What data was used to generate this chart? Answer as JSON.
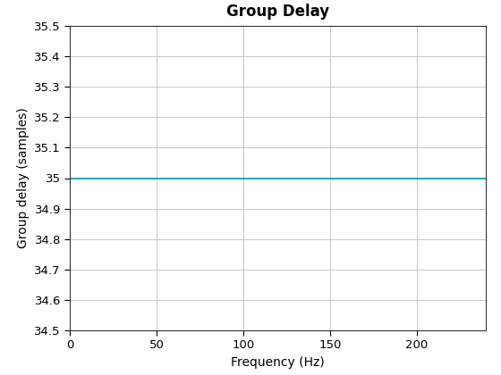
{
  "title": "Group Delay",
  "xlabel": "Frequency (Hz)",
  "ylabel": "Group delay (samples)",
  "x_start": 0,
  "x_end": 240,
  "y_value": 35,
  "ylim": [
    34.5,
    35.5
  ],
  "xlim": [
    0,
    240
  ],
  "yticks": [
    34.5,
    34.6,
    34.7,
    34.8,
    34.9,
    35.0,
    35.1,
    35.2,
    35.3,
    35.4,
    35.5
  ],
  "ytick_labels": [
    "34.5",
    "34.6",
    "34.7",
    "34.8",
    "34.9",
    "35",
    "35.1",
    "35.2",
    "35.3",
    "35.4",
    "35.5"
  ],
  "xticks": [
    0,
    50,
    100,
    150,
    200
  ],
  "line_color": "#0099AA",
  "line_width": 1.2,
  "background_color": "#ffffff",
  "grid_color": "#c8c8c8",
  "title_fontsize": 12,
  "label_fontsize": 10,
  "tick_fontsize": 9.5
}
